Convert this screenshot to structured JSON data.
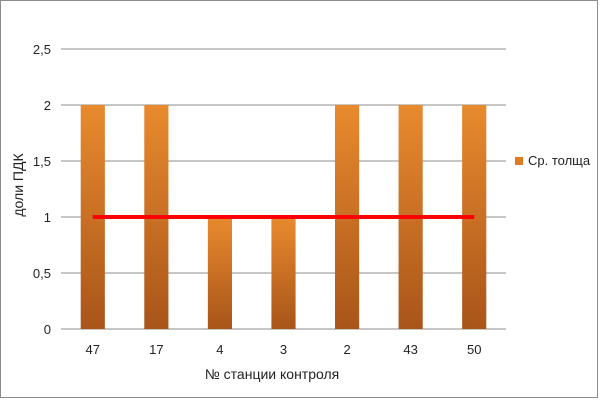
{
  "chart_data": {
    "type": "bar",
    "categories": [
      "47",
      "17",
      "4",
      "3",
      "2",
      "43",
      "50"
    ],
    "series": [
      {
        "name": "Ср. толща",
        "values": [
          2,
          2,
          1,
          1,
          2,
          2,
          2
        ],
        "color": "#e07b22"
      }
    ],
    "reference_line": {
      "value": 1,
      "color": "#ff0000"
    },
    "xlabel": "№ станции контроля",
    "ylabel": "доли ПДК",
    "ylim": [
      0,
      2.5
    ],
    "yticks": [
      "0",
      "0,5",
      "1",
      "1,5",
      "2",
      "2,5"
    ],
    "ytick_values": [
      0,
      0.5,
      1,
      1.5,
      2,
      2.5
    ],
    "grid": true,
    "legend_position": "right"
  },
  "colors": {
    "bar_top": "#e88a2e",
    "bar_bottom": "#a9551a",
    "grid": "#8c8c8c"
  }
}
